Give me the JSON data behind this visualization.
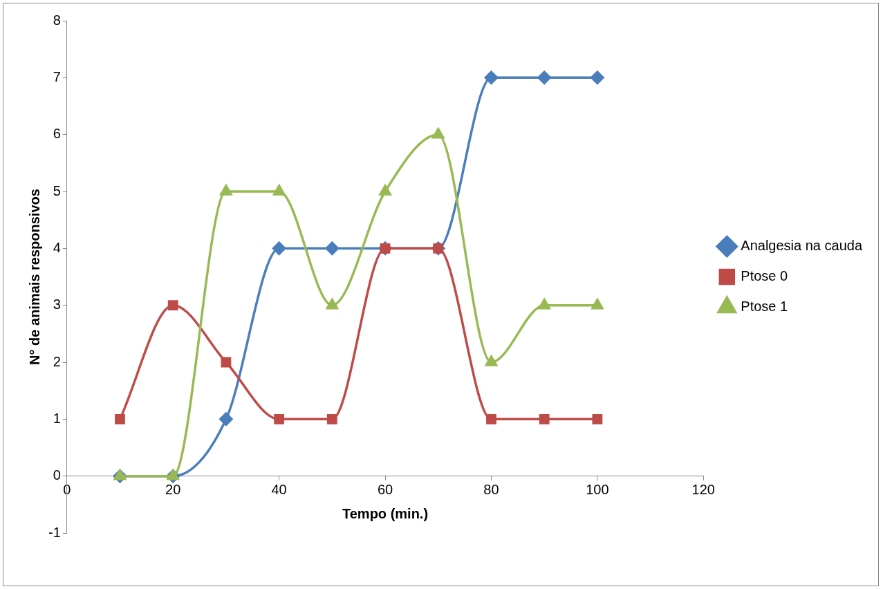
{
  "chart_data": {
    "type": "line",
    "xlabel": "Tempo (min.)",
    "ylabel": "N° de animais responsivos",
    "x": [
      10,
      20,
      30,
      40,
      50,
      60,
      70,
      80,
      90,
      100
    ],
    "series": [
      {
        "name": "Analgesia na cauda",
        "color": "#4a7ebb",
        "marker": "diamond",
        "values": [
          0,
          0,
          1,
          4,
          4,
          4,
          4,
          7,
          7,
          7
        ]
      },
      {
        "name": "Ptose 0",
        "color": "#be4b48",
        "marker": "square",
        "values": [
          1,
          3,
          2,
          1,
          1,
          4,
          4,
          1,
          1,
          1
        ]
      },
      {
        "name": "Ptose 1",
        "color": "#98b954",
        "marker": "triangle",
        "values": [
          0,
          0,
          5,
          5,
          3,
          5,
          6,
          2,
          3,
          3
        ]
      }
    ],
    "xlim": [
      0,
      120
    ],
    "xticks": [
      0,
      20,
      40,
      60,
      80,
      100,
      120
    ],
    "ylim": [
      -1,
      8
    ],
    "yticks": [
      -1,
      0,
      1,
      2,
      3,
      4,
      5,
      6,
      7,
      8
    ],
    "grid": false,
    "legend": "right",
    "line_style": "solid"
  }
}
